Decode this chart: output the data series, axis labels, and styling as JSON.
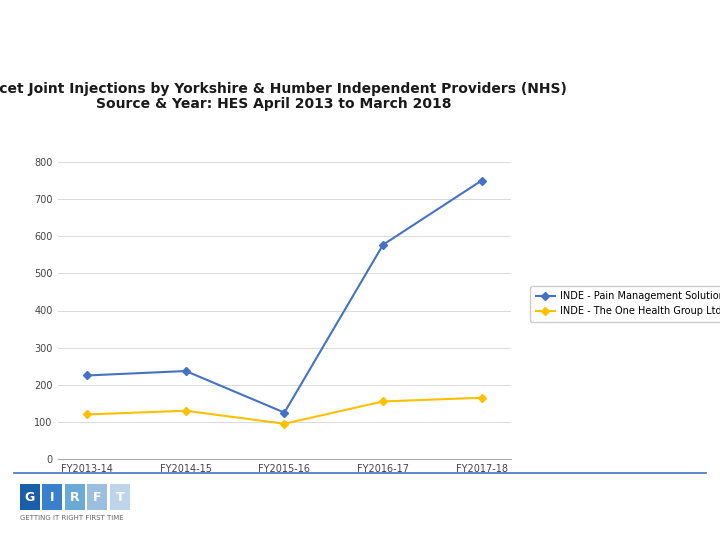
{
  "title_line1": "Facet Joint Injections by Yorkshire & Humber Independent Providers (NHS)",
  "title_line2": "Source & Year: HES April 2013 to March 2018",
  "x_labels": [
    "FY2013-14",
    "FY2014-15",
    "FY2015-16",
    "FY2016-17",
    "FY2017-18"
  ],
  "series": [
    {
      "label": "INDE - Pain Management Solutions",
      "color": "#4472C4",
      "values": [
        225,
        237,
        125,
        577,
        750
      ]
    },
    {
      "label": "INDE - The One Health Group Ltd",
      "color": "#FFC000",
      "values": [
        120,
        130,
        95,
        155,
        165
      ]
    }
  ],
  "ylim": [
    0,
    800
  ],
  "yticks": [
    0,
    100,
    200,
    300,
    400,
    500,
    600,
    700,
    800
  ],
  "background_color": "#FFFFFF",
  "grid_color": "#D9D9D9",
  "title_fontsize": 10,
  "tick_fontsize": 7,
  "legend_fontsize": 7,
  "nhs_color": "#003087",
  "girft_colors": [
    "#1A5EA8",
    "#3A80CC",
    "#6BAAD4",
    "#9CBFE0",
    "#BDD4EA"
  ],
  "girft_letters": [
    "G",
    "I",
    "R",
    "F",
    "T"
  ],
  "bottom_line_color": "#4472C4"
}
